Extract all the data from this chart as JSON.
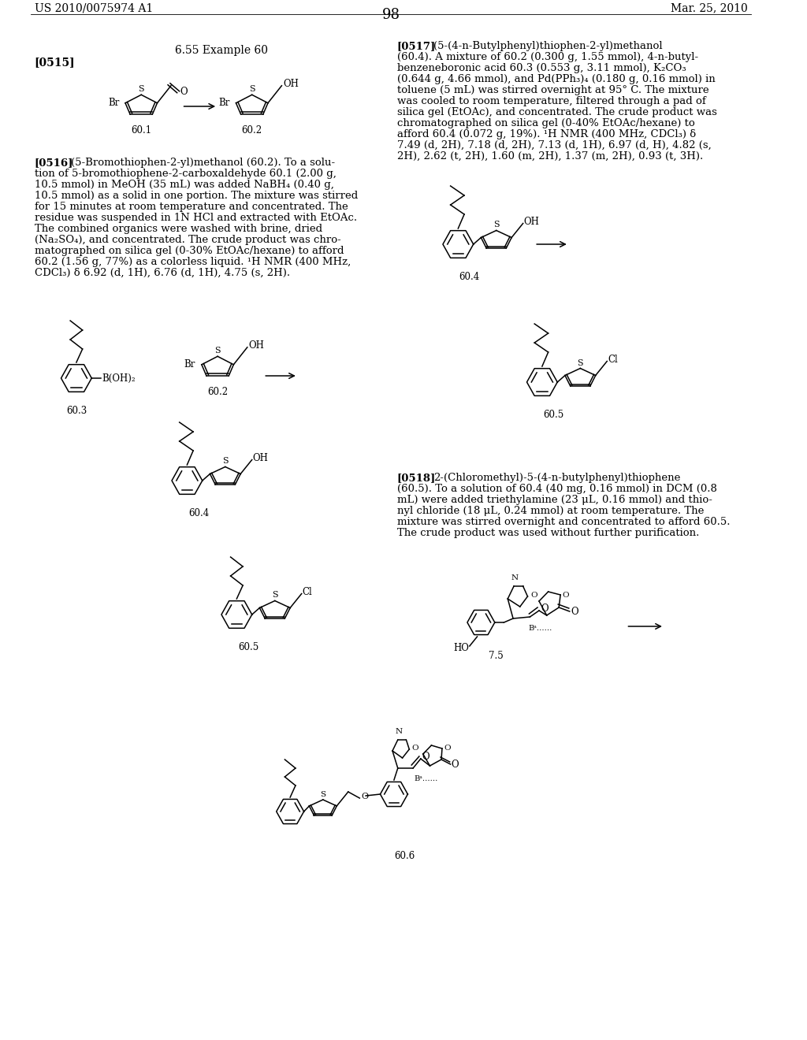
{
  "page_header_left": "US 2010/0075974 A1",
  "page_header_right": "Mar. 25, 2010",
  "page_number": "98",
  "section_title": "6.55 Example 60",
  "label_0515": "[0515]",
  "label_0516": "[0516]",
  "label_0517": "[0517]",
  "label_0518": "[0518]",
  "text_0516": "(5-Bromothiophen-2-yl)methanol (60.2). To a solu-\ntion of 5-bromothiophene-2-carboxaldehyde 60.1 (2.00 g,\n10.5 mmol) in MeOH (35 mL) was added NaBH₄ (0.40 g,\n10.5 mmol) as a solid in one portion. The mixture was stirred\nfor 15 minutes at room temperature and concentrated. The\nresidue was suspended in 1N HCl and extracted with EtOAc.\nThe combined organics were washed with brine, dried\n(Na₂SO₄), and concentrated. The crude product was chro-\nmatographed on silica gel (0-30% EtOAc/hexane) to afford\n60.2 (1.56 g, 77%) as a colorless liquid. ¹H NMR (400 MHz,\nCDCl₃) δ 6.92 (d, 1H), 6.76 (d, 1H), 4.75 (s, 2H).",
  "text_0517": "(5-(4-n-Butylphenyl)thiophen-2-yl)methanol\n(60.4). A mixture of 60.2 (0.300 g, 1.55 mmol), 4-n-butyl-\nbenzeneboronic acid 60.3 (0.553 g, 3.11 mmol), K₂CO₃\n(0.644 g, 4.66 mmol), and Pd(PPh₃)₄ (0.180 g, 0.16 mmol) in\ntoluene (5 mL) was stirred overnight at 95° C. The mixture\nwas cooled to room temperature, filtered through a pad of\nsilica gel (EtOAc), and concentrated. The crude product was\nchromatographed on silica gel (0-40% EtOAc/hexane) to\nafford 60.4 (0.072 g, 19%). ¹H NMR (400 MHz, CDCl₃) δ\n7.49 (d, 2H), 7.18 (d, 2H), 7.13 (d, 1H), 6.97 (d, H), 4.82 (s,\n2H), 2.62 (t, 2H), 1.60 (m, 2H), 1.37 (m, 2H), 0.93 (t, 3H).",
  "text_0518": "2-(Chloromethyl)-5-(4-n-butylphenyl)thiophene\n(60.5). To a solution of 60.4 (40 mg, 0.16 mmol) in DCM (0.8\nmL) were added triethylamine (23 μL, 0.16 mmol) and thio-\nnyl chloride (18 μL, 0.24 mmol) at room temperature. The\nmixture was stirred overnight and concentrated to afford 60.5.\nThe crude product was used without further purification.",
  "bg": "#ffffff",
  "fg": "#000000"
}
